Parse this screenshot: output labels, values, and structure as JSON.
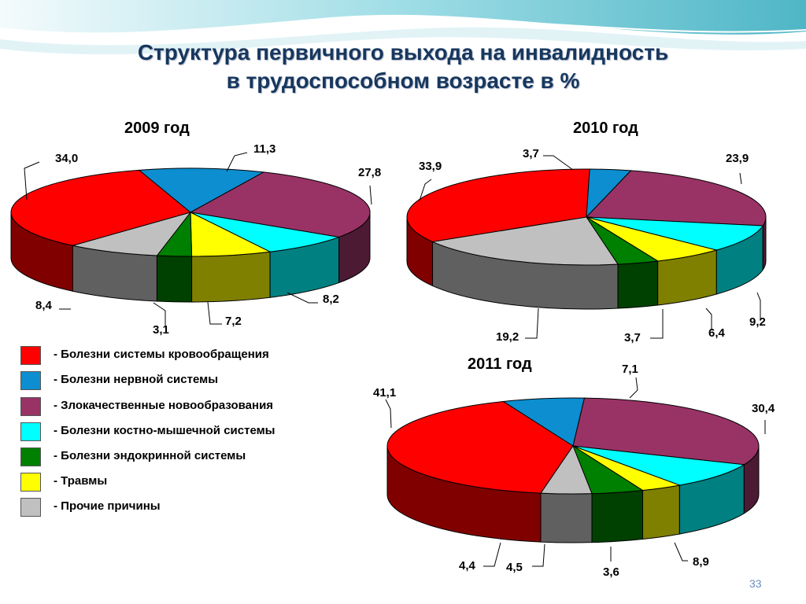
{
  "title_line1": "Структура первичного выхода на инвалидность",
  "title_line2": "в трудоспособном возрасте в %",
  "page_number": "33",
  "legend": [
    {
      "label": "- Болезни системы кровообращения",
      "color": "#ff0000"
    },
    {
      "label": "- Болезни нервной системы",
      "color": "#0c8ed0"
    },
    {
      "label": "- Злокачественные новообразования",
      "color": "#993366"
    },
    {
      "label": "- Болезни костно-мышечной системы",
      "color": "#00ffff"
    },
    {
      "label": "- Болезни эндокринной системы",
      "color": "#008000"
    },
    {
      "label": "- Травмы",
      "color": "#ffff00"
    },
    {
      "label": "- Прочие причины",
      "color": "#c0c0c0"
    }
  ],
  "chart_data": [
    {
      "type": "pie",
      "title": "2009 год",
      "categories": [
        "Болезни системы кровообращения",
        "Болезни нервной системы",
        "Злокачественные новообразования",
        "Болезни костно-мышечной системы",
        "Травмы",
        "Болезни эндокринной системы",
        "Прочие причины"
      ],
      "values": [
        34.0,
        11.3,
        27.8,
        8.2,
        7.2,
        3.1,
        8.4
      ],
      "labels": [
        "34,0",
        "11,3",
        "27,8",
        "8,2",
        "7,2",
        "3,1",
        "8,4"
      ],
      "colors": [
        "#ff0000",
        "#0c8ed0",
        "#993366",
        "#00ffff",
        "#ffff00",
        "#008000",
        "#c0c0c0"
      ]
    },
    {
      "type": "pie",
      "title": "2010 год",
      "categories": [
        "Болезни системы кровообращения",
        "Болезни нервной системы",
        "Злокачественные новообразования",
        "Болезни костно-мышечной системы",
        "Травмы",
        "Болезни эндокринной системы",
        "Прочие причины"
      ],
      "values": [
        33.9,
        3.7,
        23.9,
        9.2,
        6.4,
        3.7,
        19.2
      ],
      "labels": [
        "33,9",
        "3,7",
        "23,9",
        "9,2",
        "6,4",
        "3,7",
        "19,2"
      ],
      "colors": [
        "#ff0000",
        "#0c8ed0",
        "#993366",
        "#00ffff",
        "#ffff00",
        "#008000",
        "#c0c0c0"
      ]
    },
    {
      "type": "pie",
      "title": "2011 год",
      "categories": [
        "Болезни системы кровообращения",
        "Болезни нервной системы",
        "Злокачественные новообразования",
        "Болезни костно-мышечной системы",
        "Травмы",
        "Болезни эндокринной системы",
        "Прочие причины"
      ],
      "values": [
        41.1,
        7.1,
        30.4,
        8.9,
        3.6,
        4.5,
        4.4
      ],
      "labels": [
        "41,1",
        "7,1",
        "30,4",
        "8,9",
        "3,6",
        "4,5",
        "4,4"
      ],
      "colors": [
        "#ff0000",
        "#0c8ed0",
        "#993366",
        "#00ffff",
        "#ffff00",
        "#008000",
        "#c0c0c0"
      ]
    }
  ]
}
